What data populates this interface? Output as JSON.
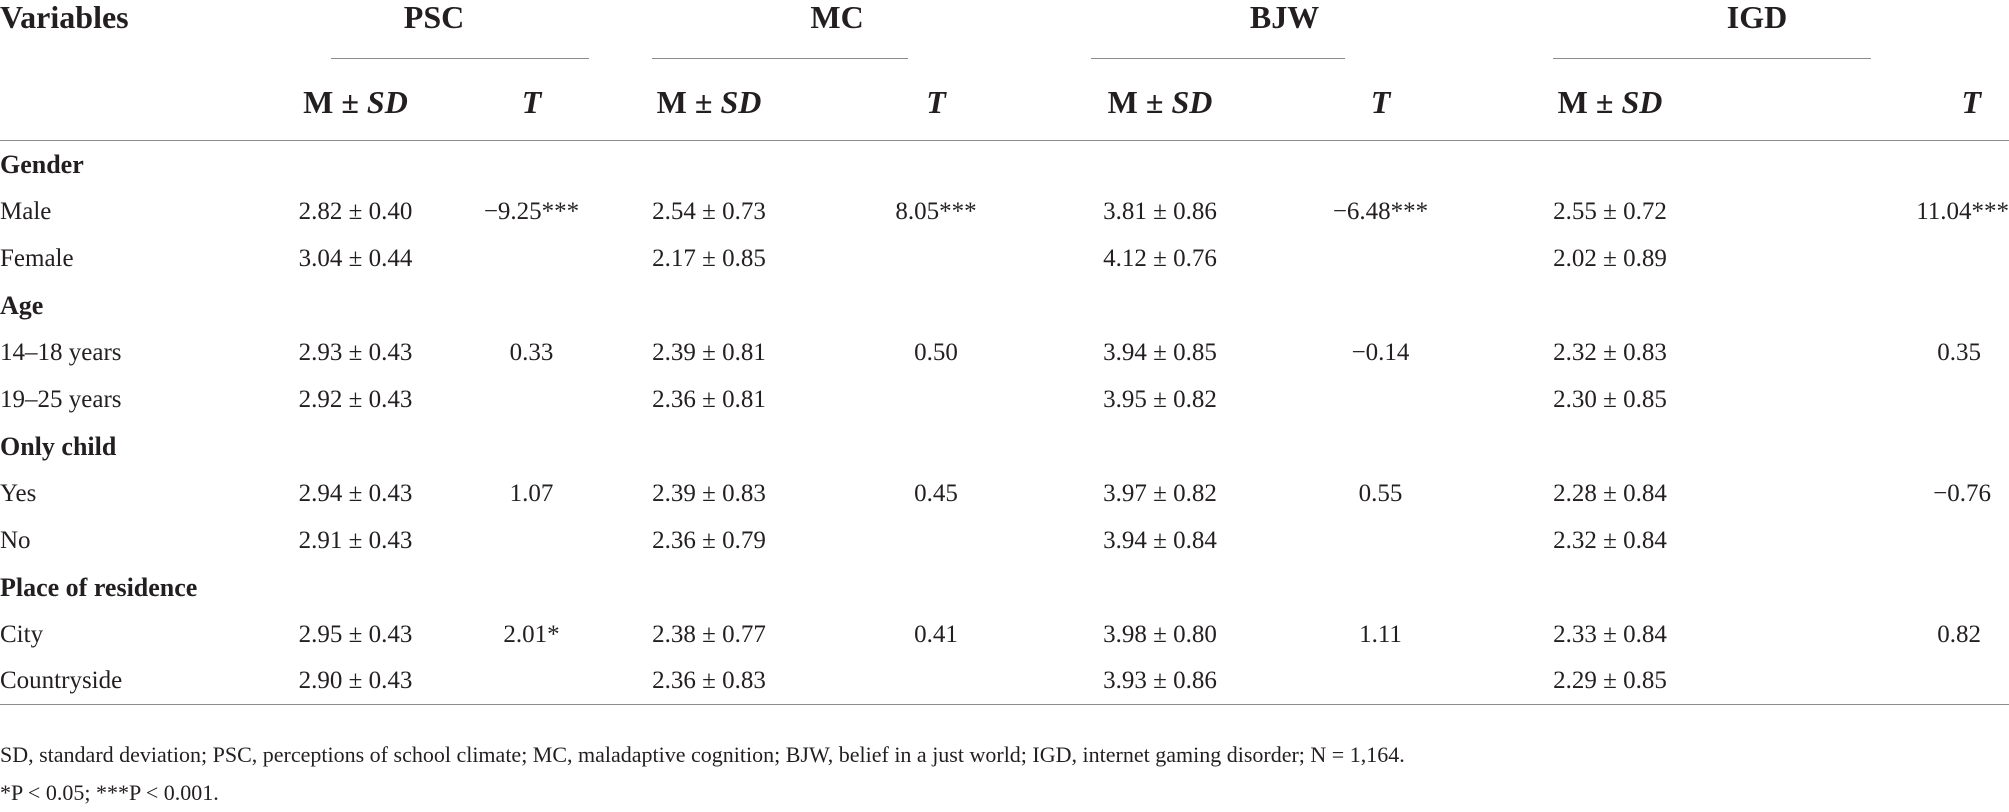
{
  "header": {
    "variables": "Variables",
    "groups": [
      "PSC",
      "MC",
      "BJW",
      "IGD"
    ],
    "sub_ms_prefix": "M ± ",
    "sub_ms_italic": "SD",
    "sub_t": "T"
  },
  "sections": [
    {
      "title": "Gender",
      "rows": [
        {
          "label": "Male",
          "cells": [
            "2.82 ± 0.40",
            "−9.25***",
            "2.54 ± 0.73",
            "8.05***",
            "3.81 ± 0.86",
            "−6.48***",
            "2.55 ± 0.72",
            "11.04***"
          ]
        },
        {
          "label": "Female",
          "cells": [
            "3.04 ± 0.44",
            "",
            "2.17 ± 0.85",
            "",
            "4.12 ± 0.76",
            "",
            "2.02 ± 0.89",
            ""
          ]
        }
      ]
    },
    {
      "title": "Age",
      "rows": [
        {
          "label": "14–18 years",
          "cells": [
            "2.93 ± 0.43",
            "0.33",
            "2.39 ± 0.81",
            "0.50",
            "3.94 ± 0.85",
            "−0.14",
            "2.32 ± 0.83",
            "0.35"
          ]
        },
        {
          "label": "19–25 years",
          "cells": [
            "2.92 ± 0.43",
            "",
            "2.36 ± 0.81",
            "",
            "3.95 ± 0.82",
            "",
            "2.30 ± 0.85",
            ""
          ]
        }
      ]
    },
    {
      "title": "Only child",
      "rows": [
        {
          "label": "Yes",
          "cells": [
            "2.94 ± 0.43",
            "1.07",
            "2.39 ± 0.83",
            "0.45",
            "3.97 ± 0.82",
            "0.55",
            "2.28 ± 0.84",
            "−0.76"
          ]
        },
        {
          "label": "No",
          "cells": [
            "2.91 ± 0.43",
            "",
            "2.36 ± 0.79",
            "",
            "3.94 ± 0.84",
            "",
            "2.32 ± 0.84",
            ""
          ]
        }
      ]
    },
    {
      "title": "Place of residence",
      "rows": [
        {
          "label": "City",
          "cells": [
            "2.95 ± 0.43",
            "2.01*",
            "2.38 ± 0.77",
            "0.41",
            "3.98 ± 0.80",
            "1.11",
            "2.33 ± 0.84",
            "0.82"
          ]
        },
        {
          "label": "Countryside",
          "cells": [
            "2.90 ± 0.43",
            "",
            "2.36 ± 0.83",
            "",
            "3.93 ± 0.86",
            "",
            "2.29 ± 0.85",
            ""
          ]
        }
      ]
    }
  ],
  "footnotes": [
    "SD, standard deviation; PSC, perceptions of school climate; MC, maladaptive cognition; BJW, belief in a just world; IGD, internet gaming disorder; N = 1,164.",
    "*P < 0.05; ***P < 0.001."
  ]
}
